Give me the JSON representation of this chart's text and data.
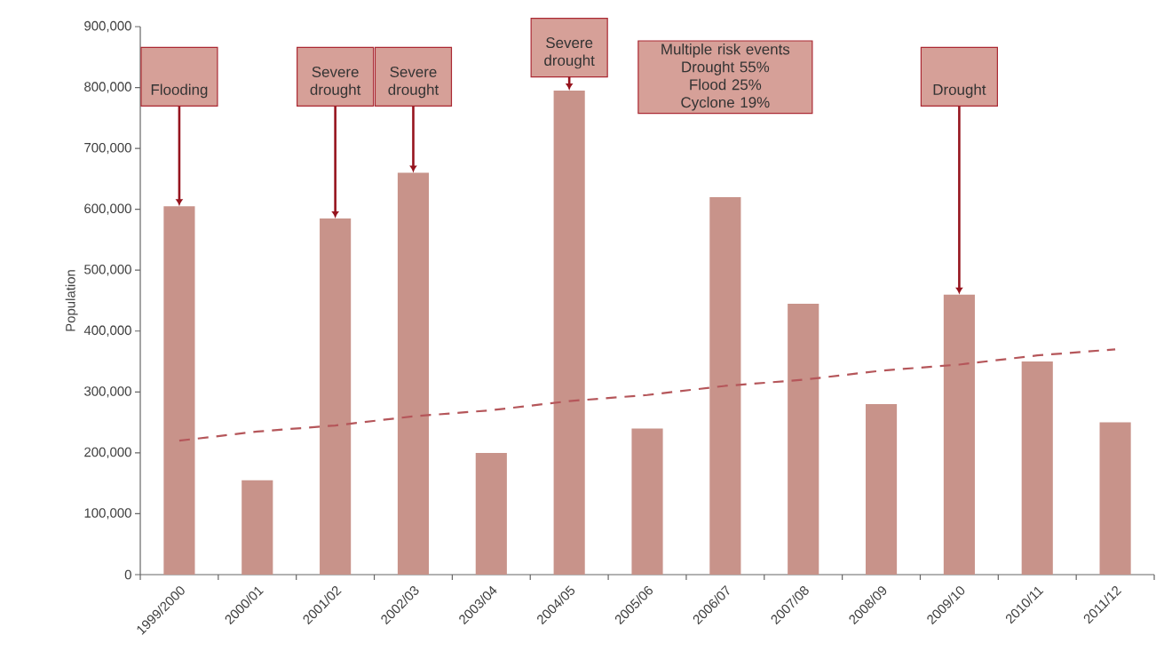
{
  "chart_data": {
    "type": "bar",
    "ylabel": "Population",
    "categories": [
      "1999/2000",
      "2000/01",
      "2001/02",
      "2002/03",
      "2003/04",
      "2004/05",
      "2005/06",
      "2006/07",
      "2007/08",
      "2008/09",
      "2009/10",
      "2010/11",
      "2011/12"
    ],
    "series": [
      {
        "color": "#c8938a",
        "values": [
          605000,
          155000,
          585000,
          660000,
          200000,
          795000,
          240000,
          620000,
          445000,
          280000,
          460000,
          350000,
          250000
        ]
      },
      {
        "type": "line",
        "color": "#b5565a",
        "line_style": "dashed",
        "values": [
          220000,
          235000,
          245000,
          260000,
          270000,
          285000,
          295000,
          310000,
          320000,
          335000,
          345000,
          360000,
          370000
        ]
      }
    ],
    "ylim": [
      0,
      900000
    ],
    "yticks": [
      0,
      {
        "value": 100000,
        "label": "100,000"
      },
      {
        "value": 200000,
        "label": "200,000"
      },
      {
        "value": 300000,
        "label": "300,000"
      },
      {
        "value": 400000,
        "label": "400,000"
      },
      {
        "value": 500000,
        "label": "500,000"
      },
      {
        "value": 600000,
        "label": "600,000"
      },
      {
        "value": 700000,
        "label": "700,000"
      },
      {
        "value": 800000,
        "label": "800,000"
      },
      {
        "value": 900000,
        "label": "900,000"
      }
    ],
    "annotations": [
      {
        "text": "Flooding",
        "x": "1999/2000",
        "y": 605000
      },
      {
        "text": "Severe drought",
        "x": "2001/02",
        "y": 585000
      },
      {
        "text": "Severe drought",
        "x": "2002/03",
        "y": 660000
      },
      {
        "text": "Severe drought",
        "x": "2004/05",
        "y": 795000
      },
      "Multiple risk events",
      "Drought 55%",
      "Flood 25%",
      "Cyclone 19%",
      {
        "text": "Drought",
        "x": "2009/10",
        "y": 460000
      }
    ],
    "grid": false
  }
}
